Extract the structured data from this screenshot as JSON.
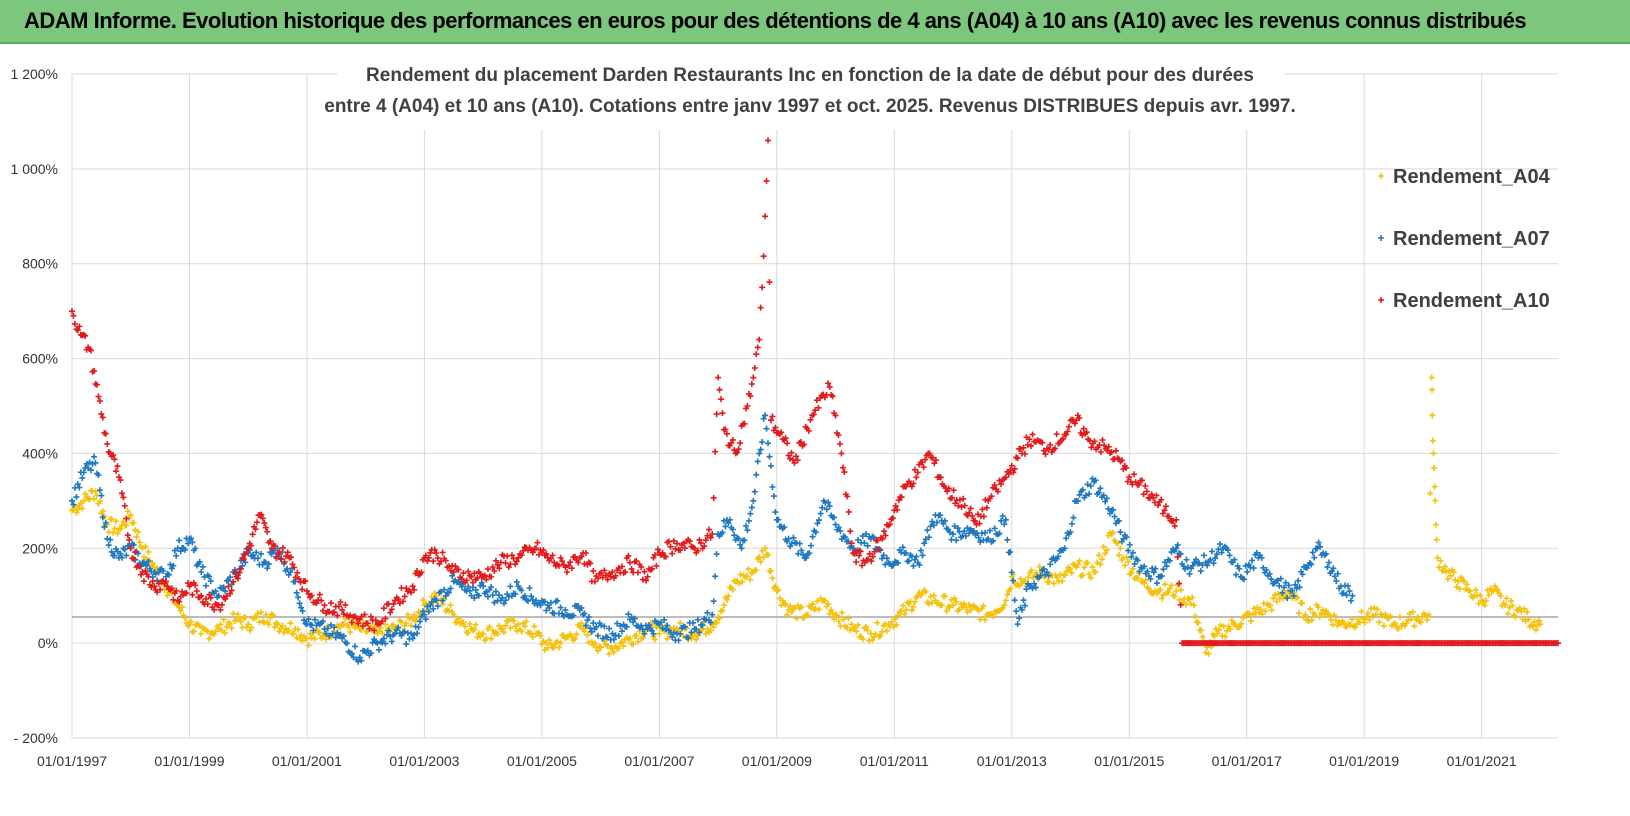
{
  "banner": {
    "title": "ADAM Informe. Evolution historique des performances en euros pour des détentions de 4 ans (A04) à 10 ans (A10) avec les revenus connus distribués"
  },
  "colors": {
    "banner_bg": "#7dc67d",
    "gridline": "#d9d9d9",
    "zero_line": "#a6a6a6",
    "A04": "#f4c20d",
    "A07": "#1f78c0",
    "A10": "#e31a1c"
  },
  "chart_data": {
    "type": "scatter",
    "title": [
      "Rendement du placement Darden Restaurants Inc en fonction de la date de début pour des durées",
      "entre 4 (A04) et 10 ans (A10). Cotations entre janv 1997 et oct. 2025. Revenus DISTRIBUES depuis avr. 1997."
    ],
    "xlabel": "",
    "ylabel": "",
    "x_range": [
      1997.0,
      2022.3
    ],
    "ylim": [
      -200,
      1200
    ],
    "y_ticks": [
      -200,
      0,
      200,
      400,
      600,
      800,
      1000,
      1200
    ],
    "y_tick_labels": [
      "- 200%",
      "0%",
      "200%",
      "400%",
      "600%",
      "800%",
      "1 000%",
      "1 200%"
    ],
    "x_ticks": [
      1997,
      1999,
      2001,
      2003,
      2005,
      2007,
      2009,
      2011,
      2013,
      2015,
      2017,
      2019,
      2021
    ],
    "x_tick_labels": [
      "01/01/1997",
      "01/01/1999",
      "01/01/2001",
      "01/01/2003",
      "01/01/2005",
      "01/01/2007",
      "01/01/2009",
      "01/01/2011",
      "01/01/2013",
      "01/01/2015",
      "01/01/2017",
      "01/01/2019",
      "01/01/2021"
    ],
    "reference_line_y": 55,
    "legend_position": "right",
    "series": [
      {
        "name": "Rendement_A04",
        "color": "#f4c20d",
        "points": [
          [
            1997.0,
            280
          ],
          [
            1997.2,
            300
          ],
          [
            1997.4,
            320
          ],
          [
            1997.6,
            250
          ],
          [
            1997.8,
            240
          ],
          [
            1998.0,
            270
          ],
          [
            1998.2,
            200
          ],
          [
            1998.4,
            160
          ],
          [
            1998.6,
            120
          ],
          [
            1998.8,
            80
          ],
          [
            1999.0,
            40
          ],
          [
            1999.2,
            20
          ],
          [
            1999.5,
            30
          ],
          [
            1999.8,
            50
          ],
          [
            2000.0,
            40
          ],
          [
            2000.3,
            60
          ],
          [
            2000.5,
            40
          ],
          [
            2000.8,
            30
          ],
          [
            2001.0,
            10
          ],
          [
            2001.3,
            20
          ],
          [
            2001.6,
            40
          ],
          [
            2001.9,
            30
          ],
          [
            2002.2,
            20
          ],
          [
            2002.5,
            30
          ],
          [
            2002.8,
            50
          ],
          [
            2003.0,
            80
          ],
          [
            2003.2,
            100
          ],
          [
            2003.5,
            60
          ],
          [
            2003.8,
            30
          ],
          [
            2004.0,
            20
          ],
          [
            2004.3,
            30
          ],
          [
            2004.6,
            40
          ],
          [
            2004.9,
            20
          ],
          [
            2005.1,
            -10
          ],
          [
            2005.4,
            10
          ],
          [
            2005.7,
            30
          ],
          [
            2005.9,
            0
          ],
          [
            2006.2,
            -10
          ],
          [
            2006.5,
            10
          ],
          [
            2006.8,
            30
          ],
          [
            2007.0,
            20
          ],
          [
            2007.3,
            30
          ],
          [
            2007.6,
            20
          ],
          [
            2007.9,
            40
          ],
          [
            2008.1,
            80
          ],
          [
            2008.3,
            130
          ],
          [
            2008.6,
            150
          ],
          [
            2008.8,
            200
          ],
          [
            2009.0,
            110
          ],
          [
            2009.2,
            70
          ],
          [
            2009.5,
            60
          ],
          [
            2009.8,
            90
          ],
          [
            2010.0,
            60
          ],
          [
            2010.3,
            30
          ],
          [
            2010.6,
            20
          ],
          [
            2010.9,
            40
          ],
          [
            2011.2,
            70
          ],
          [
            2011.4,
            100
          ],
          [
            2011.7,
            90
          ],
          [
            2012.0,
            80
          ],
          [
            2012.3,
            70
          ],
          [
            2012.6,
            60
          ],
          [
            2012.9,
            90
          ],
          [
            2013.0,
            140
          ],
          [
            2013.2,
            130
          ],
          [
            2013.5,
            150
          ],
          [
            2013.8,
            130
          ],
          [
            2014.1,
            160
          ],
          [
            2014.4,
            150
          ],
          [
            2014.7,
            230
          ],
          [
            2014.9,
            180
          ],
          [
            2015.2,
            130
          ],
          [
            2015.5,
            110
          ],
          [
            2015.8,
            110
          ],
          [
            2016.1,
            80
          ],
          [
            2016.3,
            -20
          ],
          [
            2016.5,
            20
          ],
          [
            2016.8,
            40
          ],
          [
            2017.1,
            60
          ],
          [
            2017.4,
            80
          ],
          [
            2017.7,
            110
          ],
          [
            2018.0,
            60
          ],
          [
            2018.3,
            70
          ],
          [
            2018.6,
            40
          ],
          [
            2018.9,
            50
          ],
          [
            2019.2,
            60
          ],
          [
            2019.5,
            40
          ],
          [
            2019.8,
            50
          ],
          [
            2020.1,
            60
          ],
          [
            2020.15,
            560
          ],
          [
            2020.16,
            480
          ],
          [
            2020.18,
            400
          ],
          [
            2020.2,
            330
          ],
          [
            2020.22,
            250
          ],
          [
            2020.25,
            180
          ],
          [
            2020.4,
            150
          ],
          [
            2020.6,
            130
          ],
          [
            2020.8,
            110
          ],
          [
            2021.0,
            90
          ],
          [
            2021.2,
            110
          ],
          [
            2021.4,
            80
          ],
          [
            2021.6,
            70
          ],
          [
            2021.8,
            50
          ],
          [
            2022.0,
            40
          ]
        ]
      },
      {
        "name": "Rendement_A07",
        "color": "#1f78c0",
        "points": [
          [
            1997.0,
            300
          ],
          [
            1997.2,
            360
          ],
          [
            1997.4,
            380
          ],
          [
            1997.6,
            220
          ],
          [
            1997.8,
            180
          ],
          [
            1998.0,
            200
          ],
          [
            1998.2,
            170
          ],
          [
            1998.4,
            150
          ],
          [
            1998.6,
            140
          ],
          [
            1998.8,
            200
          ],
          [
            1999.0,
            220
          ],
          [
            1999.2,
            150
          ],
          [
            1999.5,
            100
          ],
          [
            1999.8,
            150
          ],
          [
            2000.0,
            190
          ],
          [
            2000.3,
            170
          ],
          [
            2000.5,
            200
          ],
          [
            2000.8,
            130
          ],
          [
            2001.0,
            40
          ],
          [
            2001.3,
            30
          ],
          [
            2001.6,
            10
          ],
          [
            2001.9,
            -30
          ],
          [
            2002.2,
            0
          ],
          [
            2002.5,
            20
          ],
          [
            2002.8,
            10
          ],
          [
            2003.0,
            60
          ],
          [
            2003.2,
            90
          ],
          [
            2003.5,
            130
          ],
          [
            2003.8,
            100
          ],
          [
            2004.0,
            120
          ],
          [
            2004.3,
            90
          ],
          [
            2004.6,
            120
          ],
          [
            2004.9,
            90
          ],
          [
            2005.1,
            80
          ],
          [
            2005.4,
            70
          ],
          [
            2005.7,
            60
          ],
          [
            2005.9,
            30
          ],
          [
            2006.2,
            20
          ],
          [
            2006.5,
            50
          ],
          [
            2006.8,
            30
          ],
          [
            2007.0,
            40
          ],
          [
            2007.3,
            20
          ],
          [
            2007.6,
            30
          ],
          [
            2007.9,
            60
          ],
          [
            2008.0,
            230
          ],
          [
            2008.2,
            260
          ],
          [
            2008.4,
            200
          ],
          [
            2008.6,
            300
          ],
          [
            2008.8,
            480
          ],
          [
            2009.0,
            260
          ],
          [
            2009.2,
            220
          ],
          [
            2009.5,
            180
          ],
          [
            2009.8,
            300
          ],
          [
            2010.0,
            250
          ],
          [
            2010.3,
            200
          ],
          [
            2010.6,
            220
          ],
          [
            2010.9,
            170
          ],
          [
            2011.2,
            190
          ],
          [
            2011.4,
            170
          ],
          [
            2011.7,
            270
          ],
          [
            2012.0,
            230
          ],
          [
            2012.3,
            240
          ],
          [
            2012.6,
            220
          ],
          [
            2012.9,
            260
          ],
          [
            2013.1,
            40
          ],
          [
            2013.3,
            120
          ],
          [
            2013.6,
            150
          ],
          [
            2013.9,
            200
          ],
          [
            2014.1,
            300
          ],
          [
            2014.4,
            340
          ],
          [
            2014.7,
            280
          ],
          [
            2014.9,
            220
          ],
          [
            2015.2,
            160
          ],
          [
            2015.5,
            140
          ],
          [
            2015.8,
            200
          ],
          [
            2016.0,
            160
          ],
          [
            2016.3,
            170
          ],
          [
            2016.6,
            200
          ],
          [
            2016.9,
            140
          ],
          [
            2017.2,
            180
          ],
          [
            2017.5,
            130
          ],
          [
            2017.8,
            100
          ],
          [
            2018.0,
            160
          ],
          [
            2018.2,
            200
          ],
          [
            2018.4,
            170
          ],
          [
            2018.6,
            120
          ],
          [
            2018.8,
            100
          ]
        ]
      },
      {
        "name": "Rendement_A10",
        "color": "#e31a1c",
        "points": [
          [
            1997.0,
            700
          ],
          [
            1997.15,
            650
          ],
          [
            1997.3,
            620
          ],
          [
            1997.45,
            520
          ],
          [
            1997.6,
            420
          ],
          [
            1997.8,
            350
          ],
          [
            1998.0,
            200
          ],
          [
            1998.2,
            150
          ],
          [
            1998.4,
            120
          ],
          [
            1998.6,
            130
          ],
          [
            1998.8,
            90
          ],
          [
            1999.0,
            120
          ],
          [
            1999.2,
            100
          ],
          [
            1999.5,
            80
          ],
          [
            1999.8,
            140
          ],
          [
            2000.0,
            200
          ],
          [
            2000.2,
            270
          ],
          [
            2000.4,
            200
          ],
          [
            2000.7,
            180
          ],
          [
            2001.0,
            110
          ],
          [
            2001.3,
            80
          ],
          [
            2001.6,
            70
          ],
          [
            2001.9,
            50
          ],
          [
            2002.2,
            40
          ],
          [
            2002.5,
            90
          ],
          [
            2002.8,
            120
          ],
          [
            2003.0,
            180
          ],
          [
            2003.2,
            190
          ],
          [
            2003.5,
            150
          ],
          [
            2003.8,
            140
          ],
          [
            2004.0,
            140
          ],
          [
            2004.3,
            170
          ],
          [
            2004.6,
            180
          ],
          [
            2004.9,
            200
          ],
          [
            2005.1,
            180
          ],
          [
            2005.4,
            160
          ],
          [
            2005.7,
            190
          ],
          [
            2005.9,
            130
          ],
          [
            2006.2,
            150
          ],
          [
            2006.5,
            170
          ],
          [
            2006.8,
            140
          ],
          [
            2007.0,
            190
          ],
          [
            2007.3,
            210
          ],
          [
            2007.6,
            200
          ],
          [
            2007.9,
            230
          ],
          [
            2008.0,
            560
          ],
          [
            2008.1,
            450
          ],
          [
            2008.3,
            400
          ],
          [
            2008.5,
            500
          ],
          [
            2008.6,
            560
          ],
          [
            2008.7,
            640
          ],
          [
            2008.75,
            750
          ],
          [
            2008.8,
            900
          ],
          [
            2008.85,
            1060
          ],
          [
            2008.9,
            470
          ],
          [
            2009.1,
            430
          ],
          [
            2009.3,
            380
          ],
          [
            2009.6,
            480
          ],
          [
            2009.9,
            540
          ],
          [
            2010.1,
            400
          ],
          [
            2010.3,
            190
          ],
          [
            2010.5,
            170
          ],
          [
            2010.8,
            220
          ],
          [
            2011.0,
            280
          ],
          [
            2011.2,
            330
          ],
          [
            2011.4,
            360
          ],
          [
            2011.6,
            400
          ],
          [
            2011.9,
            320
          ],
          [
            2012.2,
            290
          ],
          [
            2012.4,
            250
          ],
          [
            2012.6,
            300
          ],
          [
            2012.9,
            350
          ],
          [
            2013.1,
            390
          ],
          [
            2013.3,
            430
          ],
          [
            2013.6,
            410
          ],
          [
            2013.9,
            440
          ],
          [
            2014.1,
            470
          ],
          [
            2014.3,
            430
          ],
          [
            2014.6,
            410
          ],
          [
            2014.8,
            390
          ],
          [
            2015.0,
            350
          ],
          [
            2015.3,
            320
          ],
          [
            2015.6,
            280
          ],
          [
            2015.8,
            260
          ],
          [
            2015.9,
            0
          ],
          [
            2016.5,
            0
          ],
          [
            2017.0,
            0
          ],
          [
            2017.5,
            0
          ],
          [
            2018.0,
            0
          ],
          [
            2018.5,
            0
          ],
          [
            2019.0,
            0
          ],
          [
            2019.5,
            0
          ],
          [
            2020.0,
            0
          ],
          [
            2020.5,
            0
          ],
          [
            2021.0,
            0
          ],
          [
            2021.5,
            0
          ],
          [
            2022.0,
            0
          ],
          [
            2022.3,
            0
          ]
        ]
      }
    ]
  }
}
